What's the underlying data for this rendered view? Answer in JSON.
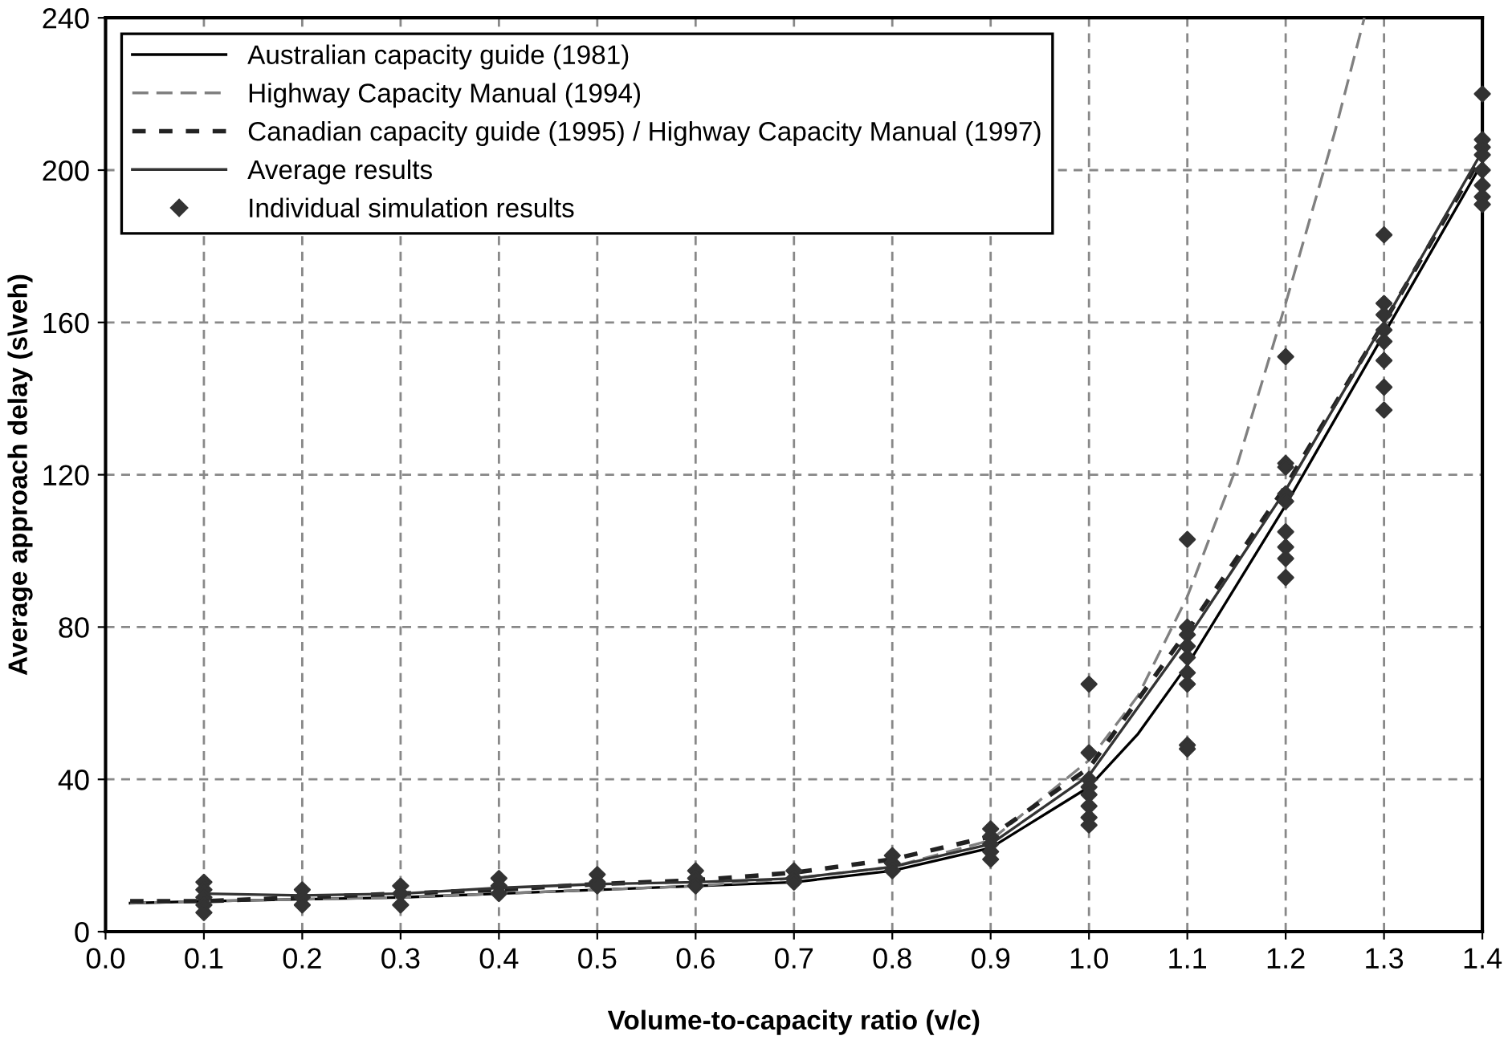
{
  "chart_data": {
    "type": "line",
    "xlabel": "Volume-to-capacity ratio (v/c)",
    "ylabel": "Average approach delay (s\\veh)",
    "xlim": [
      0,
      1.4
    ],
    "ylim": [
      0,
      240
    ],
    "xticks": [
      {
        "value": 0,
        "label": "0.0"
      },
      0.1,
      0.2,
      0.3,
      0.4,
      0.5,
      0.6,
      0.7,
      0.8,
      0.9,
      {
        "value": 1,
        "label": "1.0"
      },
      1.1,
      1.2,
      1.3,
      1.4
    ],
    "yticks": [
      0,
      40,
      80,
      120,
      160,
      200,
      240
    ],
    "grid": true,
    "legend": "top left",
    "series": [
      {
        "name": "Australian capacity guide (1981)",
        "color": "#000000",
        "line_style": "solid",
        "x": [
          0.025,
          0.1,
          0.2,
          0.3,
          0.4,
          0.5,
          0.6,
          0.7,
          0.8,
          0.9,
          1.0,
          1.05,
          1.1,
          1.2,
          1.3,
          1.4
        ],
        "values": [
          7.5,
          8,
          8.5,
          9,
          10,
          11,
          12,
          13,
          16,
          22,
          38,
          52,
          70,
          112,
          157,
          202
        ]
      },
      {
        "name": "Highway Capacity Manual (1994)",
        "color": "#808080",
        "line_style": "dashed",
        "x": [
          0.025,
          0.1,
          0.2,
          0.3,
          0.4,
          0.5,
          0.6,
          0.7,
          0.8,
          0.9,
          1.0,
          1.05,
          1.1,
          1.15,
          1.2,
          1.25,
          1.28
        ],
        "values": [
          7.5,
          8,
          8.5,
          9,
          10,
          11,
          12,
          14,
          17,
          24,
          45,
          62,
          88,
          122,
          165,
          210,
          240
        ]
      },
      {
        "name": "Canadian capacity guide (1995) / Highway Capacity Manual (1997)",
        "color": "#222222",
        "line_style": "dashed",
        "x": [
          0.025,
          0.1,
          0.2,
          0.3,
          0.4,
          0.5,
          0.6,
          0.7,
          0.8,
          0.9,
          1.0,
          1.1,
          1.2,
          1.3,
          1.4
        ],
        "values": [
          8,
          8,
          9,
          10,
          11,
          12.5,
          13.5,
          15.5,
          19,
          25,
          43,
          79,
          117,
          160,
          204
        ]
      },
      {
        "name": "Average results",
        "color": "#333333",
        "line_style": "solid",
        "x": [
          0.1,
          0.2,
          0.3,
          0.4,
          0.5,
          0.6,
          0.7,
          0.8,
          0.9,
          1.0,
          1.1,
          1.2,
          1.3,
          1.4
        ],
        "values": [
          10,
          9.5,
          10,
          11.5,
          12.5,
          13,
          14,
          17,
          23,
          41,
          77,
          116,
          160,
          205
        ]
      },
      {
        "name": "Individual simulation results",
        "type": "scatter",
        "marker": "diamond",
        "color": "#333333",
        "x": [
          0.1,
          0.1,
          0.1,
          0.1,
          0.1,
          0.2,
          0.2,
          0.2,
          0.3,
          0.3,
          0.3,
          0.4,
          0.4,
          0.4,
          0.5,
          0.5,
          0.5,
          0.6,
          0.6,
          0.6,
          0.7,
          0.7,
          0.7,
          0.8,
          0.8,
          0.8,
          0.9,
          0.9,
          0.9,
          0.9,
          0.9,
          1.0,
          1.0,
          1.0,
          1.0,
          1.0,
          1.0,
          1.0,
          1.0,
          1.1,
          1.1,
          1.1,
          1.1,
          1.1,
          1.1,
          1.1,
          1.1,
          1.1,
          1.2,
          1.2,
          1.2,
          1.2,
          1.2,
          1.2,
          1.2,
          1.2,
          1.2,
          1.3,
          1.3,
          1.3,
          1.3,
          1.3,
          1.3,
          1.3,
          1.3,
          1.4,
          1.4,
          1.4,
          1.4,
          1.4,
          1.4,
          1.4,
          1.4
        ],
        "values": [
          13,
          11,
          9,
          7,
          5,
          11,
          9,
          7,
          12,
          10,
          7,
          14,
          12,
          10,
          15,
          13,
          12,
          16,
          14,
          12,
          16,
          14,
          13,
          20,
          18,
          16,
          27,
          25,
          23,
          21,
          19,
          65,
          47,
          40,
          38,
          36,
          33,
          30,
          28,
          103,
          80,
          78,
          75,
          72,
          68,
          65,
          49,
          48,
          151,
          123,
          122,
          115,
          113,
          105,
          101,
          98,
          93,
          183,
          165,
          162,
          158,
          155,
          150,
          143,
          137,
          220,
          208,
          206,
          204,
          200,
          196,
          193,
          191
        ]
      }
    ]
  }
}
